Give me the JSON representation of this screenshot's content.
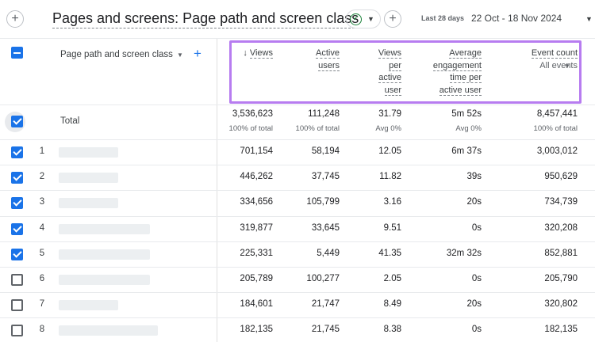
{
  "header": {
    "add_icon": "plus-icon",
    "title": "Pages and screens: Page path and screen class",
    "status_icon": "check-circle-icon",
    "compare_icon": "plus-icon",
    "date_label": "Last 28 days",
    "date_range": "22 Oct - 18 Nov 2024"
  },
  "table": {
    "dimension_header": "Page path and screen class",
    "columns": [
      {
        "lines": [
          "Views"
        ],
        "sorted": true,
        "sub": ""
      },
      {
        "lines": [
          "Active",
          "users"
        ],
        "sorted": false,
        "sub": ""
      },
      {
        "lines": [
          "Views",
          "per",
          "active",
          "user"
        ],
        "sorted": false,
        "sub": ""
      },
      {
        "lines": [
          "Average",
          "engagement",
          "time per",
          "active user"
        ],
        "sorted": false,
        "sub": ""
      },
      {
        "lines": [
          "Event count"
        ],
        "sorted": false,
        "sub": "All events"
      }
    ],
    "total": {
      "label": "Total",
      "values": [
        "3,536,623",
        "111,248",
        "31.79",
        "5m 52s",
        "8,457,441"
      ],
      "subs": [
        "100% of total",
        "100% of total",
        "Avg 0%",
        "Avg 0%",
        "100% of total"
      ]
    },
    "rows": [
      {
        "num": "1",
        "checked": true,
        "values": [
          "701,154",
          "58,194",
          "12.05",
          "6m 37s",
          "3,003,012"
        ]
      },
      {
        "num": "2",
        "checked": true,
        "values": [
          "446,262",
          "37,745",
          "11.82",
          "39s",
          "950,629"
        ]
      },
      {
        "num": "3",
        "checked": true,
        "values": [
          "334,656",
          "105,799",
          "3.16",
          "20s",
          "734,739"
        ]
      },
      {
        "num": "4",
        "checked": true,
        "values": [
          "319,877",
          "33,645",
          "9.51",
          "0s",
          "320,208"
        ]
      },
      {
        "num": "5",
        "checked": true,
        "values": [
          "225,331",
          "5,449",
          "41.35",
          "32m 32s",
          "852,881"
        ]
      },
      {
        "num": "6",
        "checked": false,
        "values": [
          "205,789",
          "100,277",
          "2.05",
          "0s",
          "205,790"
        ]
      },
      {
        "num": "7",
        "checked": false,
        "values": [
          "184,601",
          "21,747",
          "8.49",
          "20s",
          "320,802"
        ]
      },
      {
        "num": "8",
        "checked": false,
        "values": [
          "182,135",
          "21,745",
          "8.38",
          "0s",
          "182,135"
        ]
      }
    ]
  },
  "colors": {
    "accent": "#1a73e8",
    "highlight": "#b77cf0",
    "success": "#188038"
  }
}
